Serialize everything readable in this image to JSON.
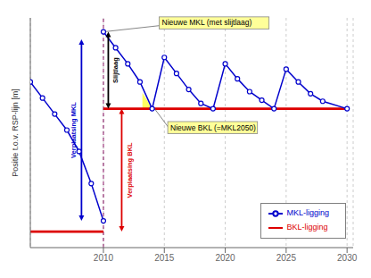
{
  "chart_data": {
    "type": "line",
    "ylabel": "Positie t.o.v. RSP-lijn [m]",
    "xlim": [
      2004.0,
      2030.5
    ],
    "ylim": [
      -1.0,
      1.15
    ],
    "xticks": [
      2010,
      2015,
      2020,
      2025,
      2030
    ],
    "yticks": [],
    "tick_labels": "x",
    "grid": true,
    "legend": "lower right",
    "series": [
      {
        "name": "MKL-ligging",
        "color": "#0000cc",
        "marker": "o",
        "x": [
          2004,
          2005,
          2006,
          2007,
          2008,
          2009,
          2010,
          2010,
          2010,
          2011,
          2012,
          2013,
          2014,
          2015,
          2016,
          2017,
          2018,
          2019,
          2020,
          2021,
          2022,
          2023,
          2024,
          2025,
          2026,
          2027,
          2028,
          2030
        ],
        "values": [
          0.55,
          0.4,
          0.25,
          0.1,
          -0.1,
          -0.4,
          -0.75,
          null,
          1.02,
          0.87,
          0.72,
          0.55,
          0.3,
          0.78,
          0.63,
          0.48,
          0.35,
          0.3,
          0.72,
          0.58,
          0.46,
          0.38,
          0.3,
          0.67,
          0.55,
          0.44,
          0.37,
          0.3
        ]
      },
      {
        "name": "BKL-ligging",
        "color": "#dd0000",
        "marker": "none",
        "x": [
          2004,
          2010,
          2010,
          2010,
          2030
        ],
        "values": [
          -0.85,
          -0.85,
          null,
          0.3,
          0.3
        ]
      }
    ],
    "vlines": [
      {
        "x": 2010,
        "color": "#0000cc",
        "line_style": "dashed"
      },
      {
        "x": 2010,
        "color": "#dd0000",
        "line_style": "dashed"
      }
    ],
    "fill": {
      "x": [
        2013.2,
        2014.0,
        2015.0,
        2013.2
      ],
      "y": [
        0.45,
        0.3,
        0.3,
        0.3
      ],
      "color": "#ffff44"
    },
    "arrows": [
      {
        "text": "Verplaatsing MKL",
        "x": 2008.2,
        "y": [
          -0.75,
          0.95
        ],
        "color": "#0000cc"
      },
      {
        "text": "Verplaatsing BKL",
        "x": 2011.5,
        "y": [
          -0.85,
          0.3
        ],
        "color": "#dd0000"
      },
      {
        "text": "Slijtlaag",
        "x": 2010.4,
        "y": [
          0.3,
          1.02
        ],
        "color": "#000000"
      }
    ],
    "callouts": [
      {
        "text": "Nieuwe MKL (met slijtlaag)",
        "xy": [
          2010.05,
          1.02
        ],
        "xytext": [
          2014.8,
          1.08
        ],
        "color": "#ffff99"
      },
      {
        "text": "Nieuwe BKL (=MKL2050)",
        "xy": [
          2014.2,
          0.3
        ],
        "xytext": [
          2015.5,
          0.1
        ],
        "color": "#ffff99"
      }
    ]
  }
}
